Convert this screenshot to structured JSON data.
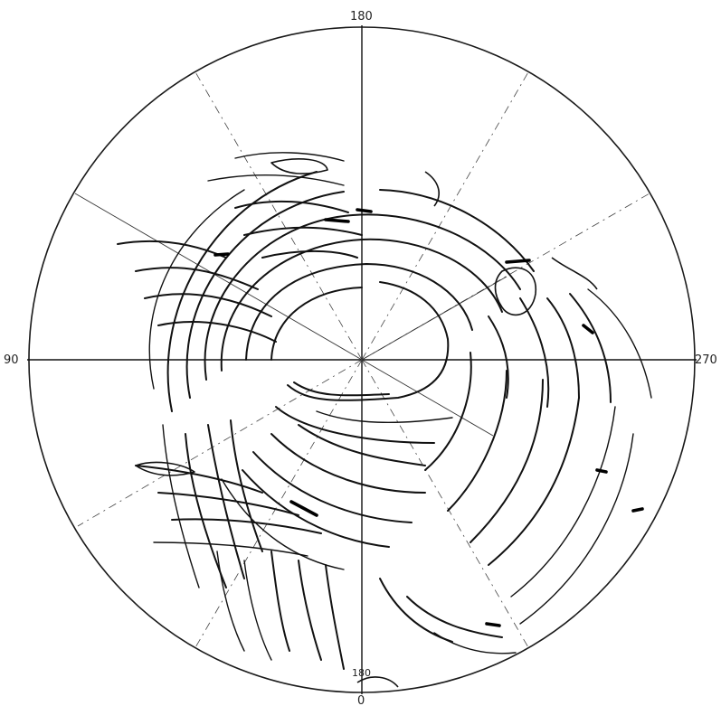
{
  "map": {
    "labels": {
      "top": "180",
      "left": "90",
      "right": "270",
      "bottom": "0",
      "inner_bottom": "180"
    }
  }
}
